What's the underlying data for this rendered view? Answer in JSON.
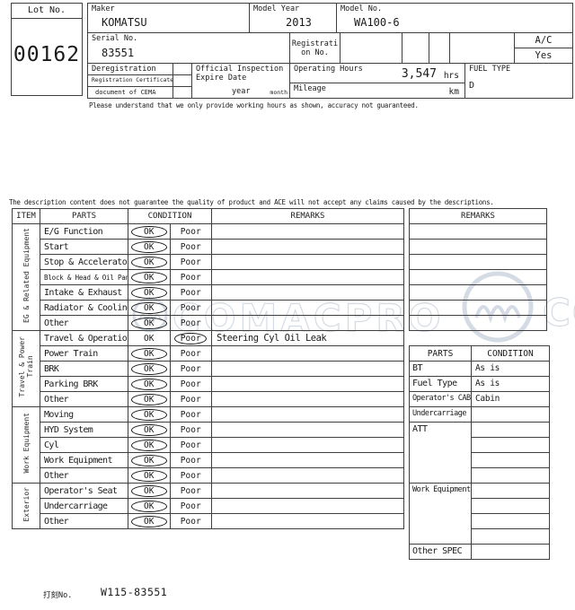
{
  "header": {
    "lot": {
      "label": "Lot No.",
      "value": "00162"
    },
    "maker": {
      "label": "Maker",
      "value": "KOMATSU"
    },
    "model_year": {
      "label": "Model Year",
      "value": "2013"
    },
    "model_no": {
      "label": "Model No.",
      "value": "WA100-6"
    },
    "serial": {
      "label": "Serial No.",
      "value": "83551"
    },
    "registration": {
      "label_line1": "Registrati",
      "label_line2": "on No."
    },
    "ac": {
      "label": "A/C",
      "value": "Yes"
    },
    "deregistration_rows": [
      "Deregistration",
      "Registration Certificate",
      "document of CEMA"
    ],
    "inspection": {
      "label_line1": "Official Inspection",
      "label_line2": "Expire Date",
      "year": "year",
      "month": "month"
    },
    "operating_hours": {
      "label": "Operating Hours",
      "value": "3,547",
      "unit": "hrs"
    },
    "mileage": {
      "label": "Mileage",
      "unit": "km"
    },
    "fuel_type": {
      "label": "FUEL TYPE",
      "value": "D"
    },
    "disclaimer": "Please understand that we only provide working hours as shown, accuracy not guaranteed."
  },
  "notice": "The description content does not guarantee the quality of product and ACE will not accept any claims caused by the descriptions.",
  "inspection_table": {
    "headers": {
      "item": "ITEM",
      "parts": "PARTS",
      "condition": "CONDITION",
      "remarks": "REMARKS"
    },
    "condition_options": {
      "ok": "OK",
      "poor": "Poor"
    },
    "groups": [
      {
        "name": "EG & Related Equipment",
        "rows": [
          {
            "part": "E/G Function",
            "condition": "OK",
            "remark": ""
          },
          {
            "part": "Start",
            "condition": "OK",
            "remark": ""
          },
          {
            "part": "Stop & Accelerator",
            "condition": "OK",
            "remark": ""
          },
          {
            "part": "Block & Head & Oil Pan",
            "condition": "OK",
            "remark": "",
            "small": true
          },
          {
            "part": "Intake & Exhaust",
            "condition": "OK",
            "remark": ""
          },
          {
            "part": "Radiator & Cooling",
            "condition": "OK",
            "remark": ""
          },
          {
            "part": "Other",
            "condition": "OK",
            "remark": ""
          }
        ]
      },
      {
        "name": "Travel & Power\nTrain",
        "rows": [
          {
            "part": "Travel & Operation",
            "condition": "Poor",
            "remark": "Steering Cyl Oil Leak"
          },
          {
            "part": "Power Train",
            "condition": "OK",
            "remark": ""
          },
          {
            "part": "BRK",
            "condition": "OK",
            "remark": ""
          },
          {
            "part": "Parking BRK",
            "condition": "OK",
            "remark": ""
          },
          {
            "part": "Other",
            "condition": "OK",
            "remark": ""
          }
        ]
      },
      {
        "name": "Work Equipment",
        "rows": [
          {
            "part": "Moving",
            "condition": "OK",
            "remark": ""
          },
          {
            "part": "HYD System",
            "condition": "OK",
            "remark": ""
          },
          {
            "part": "Cyl",
            "condition": "OK",
            "remark": ""
          },
          {
            "part": "Work Equipment",
            "condition": "OK",
            "remark": ""
          },
          {
            "part": "Other",
            "condition": "OK",
            "remark": ""
          }
        ]
      },
      {
        "name": "Exterior",
        "rows": [
          {
            "part": "Operator's Seat",
            "condition": "OK",
            "remark": ""
          },
          {
            "part": "Undercarriage",
            "condition": "OK",
            "remark": ""
          },
          {
            "part": "Other",
            "condition": "OK",
            "remark": ""
          }
        ]
      }
    ]
  },
  "remarks_panel": {
    "header": "REMARKS",
    "rows": [
      "",
      "",
      "",
      "",
      "",
      "",
      ""
    ]
  },
  "spec_table": {
    "headers": {
      "parts": "PARTS",
      "condition": "CONDITION"
    },
    "rows": [
      {
        "part": "BT",
        "condition": "As is",
        "span": 1
      },
      {
        "part": "Fuel Type",
        "condition": "As is",
        "span": 1
      },
      {
        "part": "Operator's CAB",
        "condition": "Cabin",
        "span": 1,
        "small": true
      },
      {
        "part": "Undercarriage",
        "condition": "",
        "span": 1,
        "small": true
      },
      {
        "part": "ATT",
        "condition": "",
        "span": 4
      },
      {
        "part": "Work Equipment",
        "condition": "",
        "span": 4,
        "small": true
      },
      {
        "part": "Other SPEC",
        "condition": "",
        "span": 1
      }
    ]
  },
  "footer": {
    "stamp_label": "打刻No.",
    "stamp_value": "W115-83551"
  },
  "watermark": {
    "text": "COMACPRO",
    "text_right": "CO",
    "color": "#d5dbe4"
  }
}
